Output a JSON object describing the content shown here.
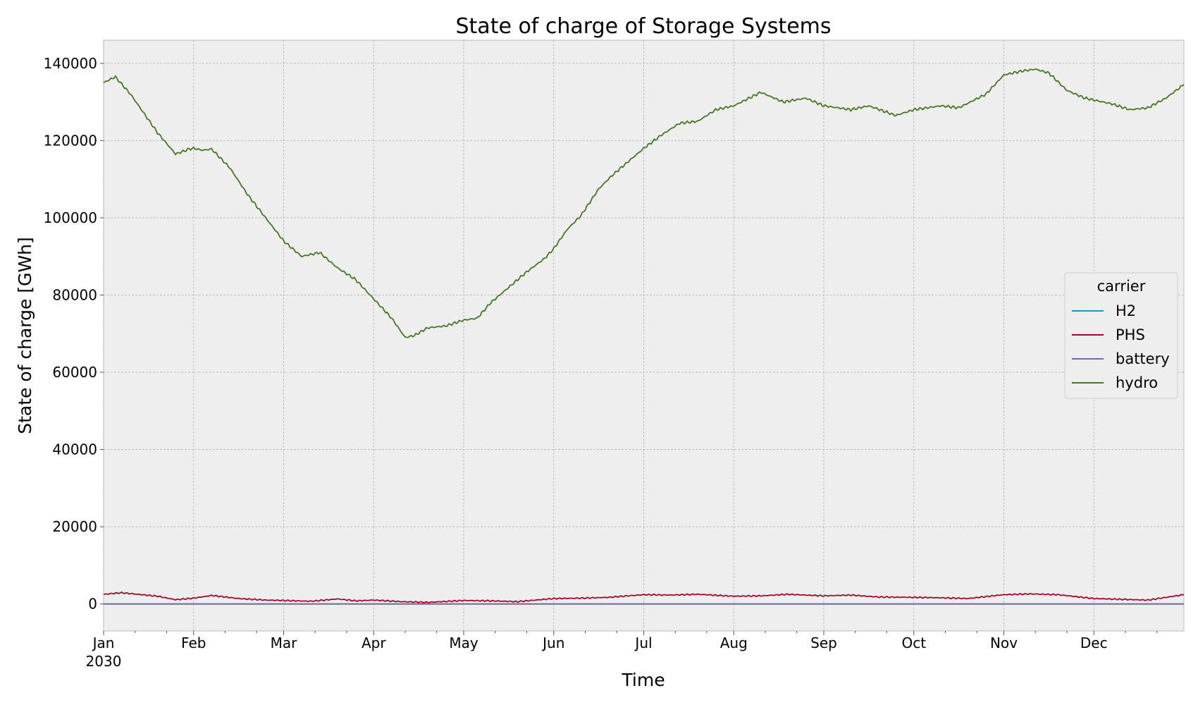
{
  "chart_data": {
    "type": "line",
    "title": "State of charge of Storage Systems",
    "xlabel": "Time",
    "ylabel": "State of charge [GWh]",
    "x_unit": "month",
    "xlim": [
      0,
      12
    ],
    "ylim": [
      -7000,
      146000
    ],
    "yticks": [
      0,
      20000,
      40000,
      60000,
      80000,
      100000,
      120000,
      140000
    ],
    "xticks": [
      {
        "x": 0,
        "label": "Jan",
        "sublabel": "2030"
      },
      {
        "x": 1,
        "label": "Feb"
      },
      {
        "x": 2,
        "label": "Mar"
      },
      {
        "x": 3,
        "label": "Apr"
      },
      {
        "x": 4,
        "label": "May"
      },
      {
        "x": 5,
        "label": "Jun"
      },
      {
        "x": 6,
        "label": "Jul"
      },
      {
        "x": 7,
        "label": "Aug"
      },
      {
        "x": 8,
        "label": "Sep"
      },
      {
        "x": 9,
        "label": "Oct"
      },
      {
        "x": 10,
        "label": "Nov"
      },
      {
        "x": 11,
        "label": "Dec"
      }
    ],
    "grid": true,
    "legend": {
      "title": "carrier",
      "position": "center-right"
    },
    "series": [
      {
        "name": "H2",
        "color": "#348abd",
        "x": [
          0,
          12
        ],
        "values": [
          0,
          0
        ]
      },
      {
        "name": "PHS",
        "color": "#a60628",
        "x": [
          0,
          0.2,
          0.6,
          0.8,
          1.0,
          1.2,
          1.5,
          1.8,
          2.0,
          2.3,
          2.6,
          2.8,
          3.0,
          3.3,
          3.6,
          4.0,
          4.3,
          4.6,
          5.0,
          5.3,
          5.6,
          6.0,
          6.3,
          6.6,
          7.0,
          7.3,
          7.6,
          8.0,
          8.3,
          8.6,
          9.0,
          9.3,
          9.6,
          10.0,
          10.3,
          10.6,
          11.0,
          11.3,
          11.6,
          12.0
        ],
        "values": [
          2500,
          2900,
          2000,
          1100,
          1500,
          2200,
          1400,
          1000,
          900,
          700,
          1300,
          800,
          1000,
          600,
          400,
          900,
          800,
          600,
          1400,
          1500,
          1700,
          2400,
          2300,
          2500,
          2000,
          2100,
          2500,
          2100,
          2300,
          1800,
          1700,
          1600,
          1400,
          2400,
          2600,
          2400,
          1400,
          1200,
          1000,
          2400
        ]
      },
      {
        "name": "battery",
        "color": "#7a68a6",
        "x": [
          0,
          12
        ],
        "values": [
          0,
          0
        ]
      },
      {
        "name": "hydro",
        "color": "#467821",
        "x": [
          0,
          0.13,
          0.3,
          0.6,
          0.8,
          0.95,
          1.0,
          1.1,
          1.2,
          1.4,
          1.6,
          1.8,
          2.0,
          2.2,
          2.4,
          2.6,
          2.8,
          3.0,
          3.2,
          3.35,
          3.45,
          3.6,
          3.8,
          4.0,
          4.15,
          4.3,
          4.5,
          4.7,
          4.9,
          5.0,
          5.15,
          5.3,
          5.5,
          5.65,
          5.8,
          6.0,
          6.2,
          6.4,
          6.6,
          6.8,
          7.0,
          7.3,
          7.55,
          7.8,
          8.0,
          8.3,
          8.5,
          8.8,
          9.0,
          9.3,
          9.5,
          9.8,
          10.0,
          10.2,
          10.35,
          10.5,
          10.7,
          10.9,
          11.0,
          11.2,
          11.4,
          11.6,
          11.8,
          12.0
        ],
        "values": [
          135000,
          136500,
          132000,
          122000,
          116500,
          117800,
          118000,
          117500,
          117800,
          113000,
          106000,
          100000,
          94000,
          90000,
          91000,
          87000,
          84000,
          79000,
          74000,
          69000,
          69500,
          71500,
          72000,
          73500,
          74000,
          78000,
          82000,
          86000,
          89500,
          92000,
          97000,
          100500,
          107500,
          111000,
          114000,
          118000,
          121500,
          124500,
          125000,
          128000,
          129000,
          132500,
          130000,
          131000,
          129000,
          128000,
          129000,
          126500,
          128000,
          129000,
          128500,
          132000,
          137000,
          138000,
          138500,
          137500,
          133000,
          131000,
          130500,
          129500,
          128000,
          128500,
          131000,
          134500
        ]
      }
    ]
  }
}
